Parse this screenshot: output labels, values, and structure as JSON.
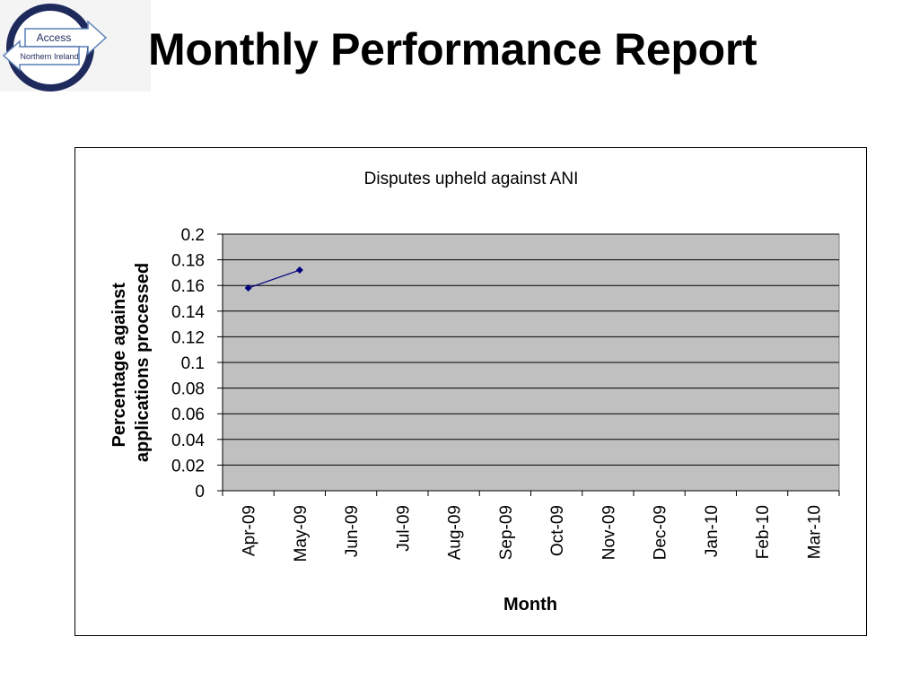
{
  "header": {
    "title": "Monthly Performance Report",
    "logo": {
      "text_top": "Access",
      "text_bottom": "Northern Ireland",
      "ring_color": "#1f2a5c"
    }
  },
  "chart_data": {
    "type": "line",
    "title": "Disputes upheld against ANI",
    "xlabel": "Month",
    "ylabel": "Percentage against applications processed",
    "ylabel_lines": [
      "Percentage against",
      "applications processed"
    ],
    "categories": [
      "Apr-09",
      "May-09",
      "Jun-09",
      "Jul-09",
      "Aug-09",
      "Sep-09",
      "Oct-09",
      "Nov-09",
      "Dec-09",
      "Jan-10",
      "Feb-10",
      "Mar-10"
    ],
    "series": [
      {
        "values": [
          0.158,
          0.172,
          null,
          null,
          null,
          null,
          null,
          null,
          null,
          null,
          null,
          null
        ],
        "color": "#000080"
      }
    ],
    "ylim": [
      0,
      0.2
    ],
    "yticks": [
      "0",
      "0.02",
      "0.04",
      "0.06",
      "0.08",
      "0.1",
      "0.12",
      "0.14",
      "0.16",
      "0.18",
      "0.2"
    ],
    "grid": true,
    "plot_background": "#c0c0c0"
  }
}
